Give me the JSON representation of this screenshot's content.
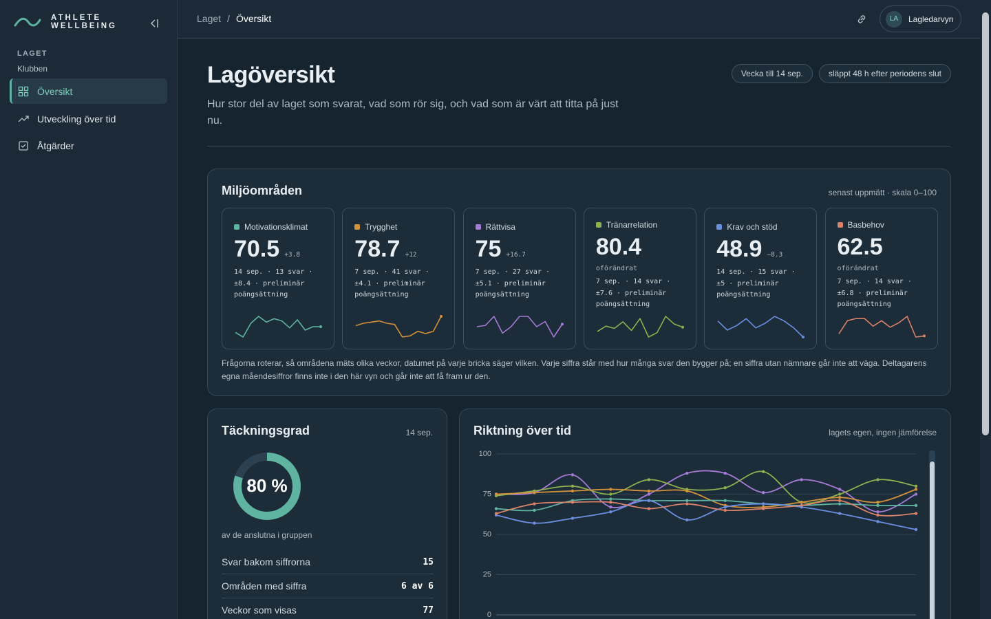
{
  "brand": {
    "line1": "ATHLETE",
    "line2": "WELLBEING"
  },
  "sidebar": {
    "section": "LAGET",
    "team": "Klubben",
    "nav": [
      "Översikt",
      "Utveckling över tid",
      "Åtgärder"
    ]
  },
  "topbar": {
    "breadcrumb": [
      "Laget",
      "Översikt"
    ],
    "separator": "/",
    "user_initials": "LA",
    "user_name": "Lagledarvyn"
  },
  "header": {
    "title": "Lagöversikt",
    "description": "Hur stor del av laget som svarat, vad som rör sig, och vad som är värt att titta på just nu.",
    "badges": [
      "Vecka till 14 sep.",
      "släppt 48 h efter periodens slut"
    ]
  },
  "environment": {
    "title": "Miljöområden",
    "note": "senast uppmätt · skala 0–100",
    "cards": [
      {
        "name": "Motivationsklimat",
        "color": "#5fb3a1",
        "value": 70.5,
        "change": "+3.8",
        "meta": "14 sep. · 13 svar · ±8.4 · preliminär poängsättning",
        "trend": [
          62,
          58,
          70,
          76,
          71,
          74,
          72,
          66,
          73,
          64,
          67,
          67
        ]
      },
      {
        "name": "Trygghet",
        "color": "#d4923a",
        "value": 78.7,
        "change": "+12",
        "meta": "7 sep. · 41 svar · ±4.1 · preliminär poängsättning",
        "trend": [
          70,
          72,
          73,
          74,
          72,
          71,
          60,
          61,
          65,
          63,
          65,
          78
        ]
      },
      {
        "name": "Rättvisa",
        "color": "#a57bd6",
        "value": 75,
        "change": "+16.7",
        "meta": "7 sep. · 27 svar · ±5.1 · preliminär poängsättning",
        "trend": [
          70,
          71,
          78,
          65,
          70,
          78,
          78,
          70,
          74,
          62,
          72
        ]
      },
      {
        "name": "Tränarrelation",
        "color": "#8fb04e",
        "value": 80.4,
        "status": "oförändrat",
        "meta": "7 sep. · 14 svar · ±7.6 · preliminär poängsättning",
        "trend": [
          55,
          60,
          58,
          64,
          56,
          67,
          50,
          54,
          69,
          62,
          59
        ]
      },
      {
        "name": "Krav och stöd",
        "color": "#6b8fe0",
        "value": 48.9,
        "change": "−8.3",
        "meta": "14 sep. · 15 svar · ±5 · preliminär poängsättning",
        "trend": [
          72,
          64,
          68,
          74,
          66,
          70,
          76,
          72,
          66,
          58
        ]
      },
      {
        "name": "Basbehov",
        "color": "#d9826a",
        "value": 62.5,
        "status": "oförändrat",
        "meta": "7 sep. · 14 svar · ±6.8 · preliminär poängsättning",
        "trend": [
          58,
          70,
          72,
          72,
          65,
          70,
          64,
          68,
          74,
          55,
          56
        ]
      }
    ],
    "footnote": "Frågorna roterar, så områdena mäts olika veckor, datumet på varje bricka säger vilken. Varje siffra står med hur många svar den bygger på; en siffra utan nämnare går inte att väga. Deltagarens egna mående­siffror finns inte i den här vyn och går inte att få fram ur den."
  },
  "coverage": {
    "title": "Täckningsgrad",
    "date": "14 sep.",
    "percent": 80,
    "percent_label": "80 %",
    "caption": "av de anslutna i gruppen",
    "rows": [
      [
        "Svar bakom siffrorna",
        "15"
      ],
      [
        "Områden med siffra",
        "6 av 6"
      ],
      [
        "Veckor som visas",
        "77"
      ]
    ]
  },
  "chart_data": {
    "type": "line",
    "title": "Riktning över tid",
    "note": "lagets egen, ingen jämförelse",
    "ylim": [
      0,
      100
    ],
    "yticks": [
      0,
      25,
      50,
      75,
      100
    ],
    "grid": true,
    "series": [
      {
        "color": "#a57bd6",
        "values": [
          75,
          76,
          87,
          67,
          75,
          88,
          88,
          76,
          84,
          78,
          64,
          75
        ]
      },
      {
        "color": "#8fb04e",
        "values": [
          74,
          77,
          80,
          75,
          84,
          78,
          79,
          89,
          70,
          75,
          84,
          80
        ]
      },
      {
        "color": "#d4923a",
        "values": [
          75,
          76,
          77,
          78,
          77,
          77,
          68,
          67,
          70,
          73,
          70,
          78
        ]
      },
      {
        "color": "#5fb3a1",
        "values": [
          66,
          65,
          71,
          72,
          71,
          71,
          71,
          69,
          68,
          69,
          68,
          68
        ]
      },
      {
        "color": "#6b8fe0",
        "values": [
          62,
          57,
          60,
          64,
          71,
          59,
          67,
          69,
          67,
          63,
          58,
          53
        ]
      },
      {
        "color": "#d9826a",
        "values": [
          63,
          69,
          70,
          70,
          66,
          69,
          65,
          66,
          68,
          71,
          62,
          63
        ]
      }
    ]
  }
}
